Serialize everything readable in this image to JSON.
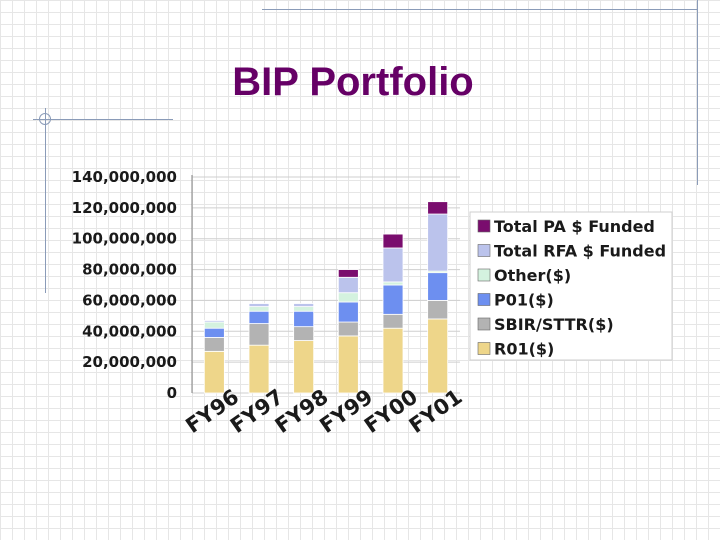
{
  "slide": {
    "title": "BIP Portfolio"
  },
  "chart_data": {
    "type": "bar",
    "stacked": true,
    "title": "",
    "xlabel": "",
    "ylabel": "",
    "ylim": [
      0,
      140000000
    ],
    "y_ticks": [
      0,
      20000000,
      40000000,
      60000000,
      80000000,
      100000000,
      120000000,
      140000000
    ],
    "y_tick_labels": [
      "0",
      "20,000,000",
      "40,000,000",
      "60,000,000",
      "80,000,000",
      "100,000,000",
      "120,000,000",
      "140,000,000"
    ],
    "categories": [
      "FY96",
      "FY97",
      "FY98",
      "FY99",
      "FY00",
      "FY01"
    ],
    "grid": "horizontal",
    "legend_position": "right",
    "series": [
      {
        "name": "R01($)",
        "color": "#eed68a",
        "values": [
          27000000,
          31000000,
          34000000,
          37000000,
          42000000,
          48000000
        ]
      },
      {
        "name": "SBIR/STTR($)",
        "color": "#b3b3b3",
        "values": [
          9000000,
          14000000,
          9000000,
          9000000,
          9000000,
          12000000
        ]
      },
      {
        "name": "P01($)",
        "color": "#6d8ff0",
        "values": [
          6000000,
          8000000,
          10000000,
          13000000,
          19000000,
          18000000
        ]
      },
      {
        "name": "Other($)",
        "color": "#d4f2df",
        "values": [
          4000000,
          3000000,
          3000000,
          6000000,
          2000000,
          1000000
        ]
      },
      {
        "name": "Total RFA $ Funded",
        "color": "#bbc3ec",
        "values": [
          1000000,
          2000000,
          2000000,
          10000000,
          22000000,
          37000000
        ]
      },
      {
        "name": "Total PA $ Funded",
        "color": "#7a0d6e",
        "values": [
          0,
          0,
          0,
          5000000,
          9000000,
          8000000
        ]
      }
    ]
  }
}
